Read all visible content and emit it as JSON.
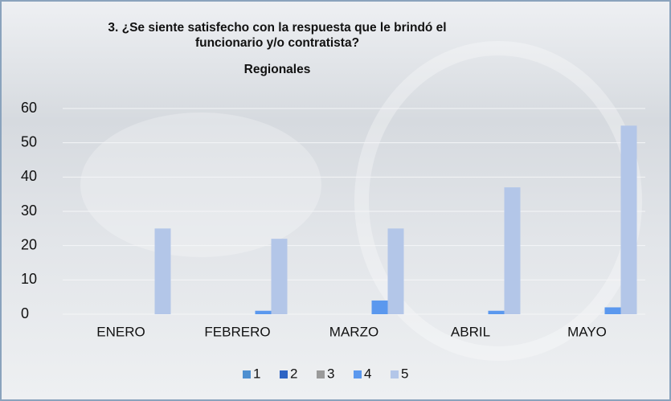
{
  "chart_data": {
    "type": "bar",
    "title": "3. ¿Se siente satisfecho con la respuesta que le brindó el funcionario y/o contratista?",
    "subtitle": "Regionales",
    "categories": [
      "ENERO",
      "FEBRERO",
      "MARZO",
      "ABRIL",
      "MAYO"
    ],
    "series": [
      {
        "name": "1",
        "color": "#4e8fd0",
        "values": [
          0,
          0,
          0,
          0,
          0
        ]
      },
      {
        "name": "2",
        "color": "#2e64c4",
        "values": [
          0,
          0,
          0,
          0,
          0
        ]
      },
      {
        "name": "3",
        "color": "#9a9a9a",
        "values": [
          0,
          0,
          0,
          0,
          0
        ]
      },
      {
        "name": "4",
        "color": "#5b98ee",
        "values": [
          0,
          1,
          4,
          1,
          2
        ]
      },
      {
        "name": "5",
        "color": "#b3c6e8",
        "values": [
          25,
          22,
          25,
          37,
          55
        ]
      }
    ],
    "ylim": [
      0,
      60
    ],
    "yticks": [
      0,
      10,
      20,
      30,
      40,
      50,
      60
    ],
    "grid": true,
    "legend": "bottom"
  }
}
